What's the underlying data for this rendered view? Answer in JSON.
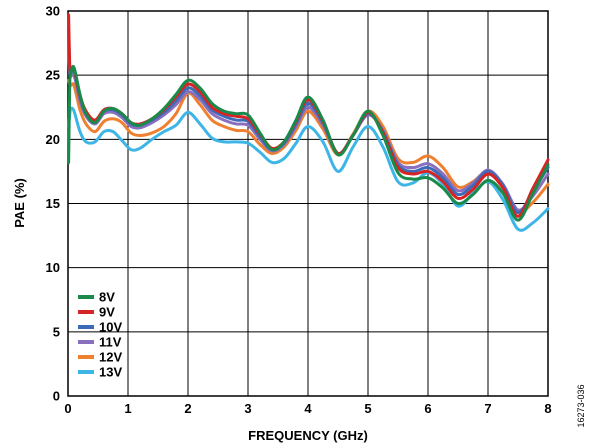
{
  "chart_data": {
    "type": "line",
    "xlabel": "FREQUENCY (GHz)",
    "ylabel": "PAE (%)",
    "xlim": [
      0,
      8
    ],
    "ylim": [
      0,
      30
    ],
    "x_ticks": [
      0,
      1,
      2,
      3,
      4,
      5,
      6,
      7,
      8
    ],
    "y_ticks": [
      0,
      5,
      10,
      15,
      20,
      25,
      30
    ],
    "grid": true,
    "legend_position": "bottom-left",
    "figure_id": "16273-036",
    "series": [
      {
        "name": "8V",
        "color": "#1a8a4a",
        "x": [
          0.01,
          0.03,
          0.05,
          0.1,
          0.2,
          0.3,
          0.45,
          0.6,
          0.75,
          0.9,
          1.05,
          1.2,
          1.4,
          1.6,
          1.8,
          2.0,
          2.2,
          2.4,
          2.6,
          2.8,
          3.0,
          3.2,
          3.4,
          3.6,
          3.8,
          4.0,
          4.25,
          4.5,
          4.75,
          5.0,
          5.25,
          5.5,
          5.75,
          6.0,
          6.25,
          6.5,
          6.75,
          7.0,
          7.25,
          7.5,
          7.75,
          8.0
        ],
        "values": [
          18.2,
          24.5,
          25.2,
          25.6,
          23.5,
          22.0,
          21.3,
          22.2,
          22.4,
          22.0,
          21.3,
          21.1,
          21.6,
          22.4,
          23.5,
          24.6,
          24.0,
          22.8,
          22.2,
          22.0,
          21.9,
          20.5,
          19.2,
          19.8,
          21.5,
          23.3,
          21.5,
          18.8,
          20.3,
          22.2,
          20.3,
          17.4,
          16.9,
          17.0,
          16.2,
          15.0,
          15.7,
          16.8,
          15.8,
          13.7,
          15.8,
          18.0
        ]
      },
      {
        "name": "9V",
        "color": "#d62424",
        "x": [
          0.01,
          0.03,
          0.05,
          0.1,
          0.2,
          0.3,
          0.45,
          0.6,
          0.75,
          0.9,
          1.05,
          1.2,
          1.4,
          1.6,
          1.8,
          2.0,
          2.2,
          2.4,
          2.6,
          2.8,
          3.0,
          3.2,
          3.4,
          3.6,
          3.8,
          4.0,
          4.25,
          4.5,
          4.75,
          5.0,
          5.25,
          5.5,
          5.75,
          6.0,
          6.25,
          6.5,
          6.75,
          7.0,
          7.25,
          7.5,
          7.75,
          8.0
        ],
        "values": [
          29.7,
          25.6,
          25.4,
          25.5,
          23.4,
          22.2,
          21.5,
          22.3,
          22.4,
          22.0,
          21.3,
          21.2,
          21.6,
          22.3,
          23.3,
          24.3,
          23.7,
          22.5,
          22.0,
          21.8,
          21.6,
          20.4,
          19.3,
          19.8,
          21.4,
          23.1,
          21.4,
          18.9,
          20.3,
          22.1,
          20.5,
          17.8,
          17.3,
          17.5,
          16.7,
          15.4,
          16.1,
          17.3,
          16.2,
          14.0,
          16.2,
          18.4
        ]
      },
      {
        "name": "10V",
        "color": "#3d6ab8",
        "x": [
          0.01,
          0.03,
          0.05,
          0.1,
          0.2,
          0.3,
          0.45,
          0.6,
          0.75,
          0.9,
          1.05,
          1.2,
          1.4,
          1.6,
          1.8,
          2.0,
          2.2,
          2.4,
          2.6,
          2.8,
          3.0,
          3.2,
          3.4,
          3.6,
          3.8,
          4.0,
          4.25,
          4.5,
          4.75,
          5.0,
          5.25,
          5.5,
          5.75,
          6.0,
          6.25,
          6.5,
          6.75,
          7.0,
          7.25,
          7.5,
          7.75,
          8.0
        ],
        "values": [
          28.5,
          25.3,
          25.2,
          25.4,
          23.3,
          22.0,
          21.4,
          22.2,
          22.3,
          21.9,
          21.2,
          21.1,
          21.5,
          22.1,
          23.0,
          24.0,
          23.4,
          22.3,
          21.8,
          21.5,
          21.4,
          20.2,
          19.2,
          19.7,
          21.2,
          22.8,
          21.3,
          18.9,
          20.3,
          22.0,
          20.6,
          18.0,
          17.5,
          17.8,
          17.0,
          15.7,
          16.4,
          17.5,
          16.4,
          14.3,
          16.0,
          17.8
        ]
      },
      {
        "name": "11V",
        "color": "#8a6fbf",
        "x": [
          0.01,
          0.03,
          0.05,
          0.1,
          0.2,
          0.3,
          0.45,
          0.6,
          0.75,
          0.9,
          1.05,
          1.2,
          1.4,
          1.6,
          1.8,
          2.0,
          2.2,
          2.4,
          2.6,
          2.8,
          3.0,
          3.2,
          3.4,
          3.6,
          3.8,
          4.0,
          4.25,
          4.5,
          4.75,
          5.0,
          5.25,
          5.5,
          5.75,
          6.0,
          6.25,
          6.5,
          6.75,
          7.0,
          7.25,
          7.5,
          7.75,
          8.0
        ],
        "values": [
          27.0,
          25.0,
          24.9,
          25.0,
          23.0,
          21.8,
          21.2,
          22.0,
          22.1,
          21.7,
          21.0,
          20.9,
          21.3,
          21.9,
          22.7,
          23.7,
          23.1,
          22.0,
          21.5,
          21.2,
          21.1,
          20.0,
          19.1,
          19.6,
          21.0,
          22.5,
          21.1,
          18.9,
          20.3,
          21.9,
          20.7,
          18.2,
          17.8,
          18.1,
          17.3,
          16.0,
          16.6,
          17.6,
          16.5,
          14.5,
          15.6,
          17.3
        ]
      },
      {
        "name": "12V",
        "color": "#ee8030",
        "x": [
          0.01,
          0.03,
          0.05,
          0.1,
          0.2,
          0.3,
          0.45,
          0.6,
          0.75,
          0.9,
          1.05,
          1.2,
          1.4,
          1.6,
          1.8,
          2.0,
          2.2,
          2.4,
          2.6,
          2.8,
          3.0,
          3.2,
          3.4,
          3.6,
          3.8,
          4.0,
          4.25,
          4.5,
          4.75,
          5.0,
          5.25,
          5.5,
          5.75,
          6.0,
          6.25,
          6.5,
          6.75,
          7.0,
          7.25,
          7.5,
          7.75,
          8.0
        ],
        "values": [
          24.6,
          24.3,
          24.2,
          24.2,
          22.3,
          21.2,
          20.6,
          21.4,
          21.6,
          21.3,
          20.5,
          20.3,
          20.5,
          21.0,
          22.0,
          23.6,
          22.7,
          21.5,
          21.0,
          20.7,
          20.6,
          19.6,
          18.9,
          19.4,
          20.7,
          22.2,
          20.8,
          18.8,
          20.4,
          22.2,
          21.0,
          18.5,
          18.2,
          18.7,
          17.8,
          16.3,
          16.7,
          17.5,
          16.3,
          14.3,
          15.1,
          16.5
        ]
      },
      {
        "name": "13V",
        "color": "#3db5e6",
        "x": [
          0.01,
          0.03,
          0.05,
          0.1,
          0.2,
          0.3,
          0.45,
          0.6,
          0.75,
          0.9,
          1.05,
          1.2,
          1.4,
          1.6,
          1.8,
          2.0,
          2.2,
          2.4,
          2.6,
          2.8,
          3.0,
          3.2,
          3.4,
          3.6,
          3.8,
          4.0,
          4.25,
          4.5,
          4.75,
          5.0,
          5.25,
          5.5,
          5.75,
          6.0,
          6.25,
          6.5,
          6.75,
          7.0,
          7.25,
          7.5,
          7.75,
          8.0
        ],
        "values": [
          21.0,
          22.0,
          22.4,
          22.2,
          20.6,
          19.8,
          19.8,
          20.6,
          20.6,
          19.9,
          19.2,
          19.3,
          20.0,
          20.6,
          21.1,
          22.1,
          21.2,
          20.1,
          19.8,
          19.8,
          19.7,
          19.0,
          18.2,
          18.5,
          19.7,
          21.0,
          19.8,
          17.5,
          19.4,
          21.0,
          19.4,
          16.7,
          16.6,
          17.4,
          16.5,
          14.8,
          15.8,
          16.7,
          15.3,
          13.0,
          13.5,
          14.6
        ]
      }
    ]
  }
}
